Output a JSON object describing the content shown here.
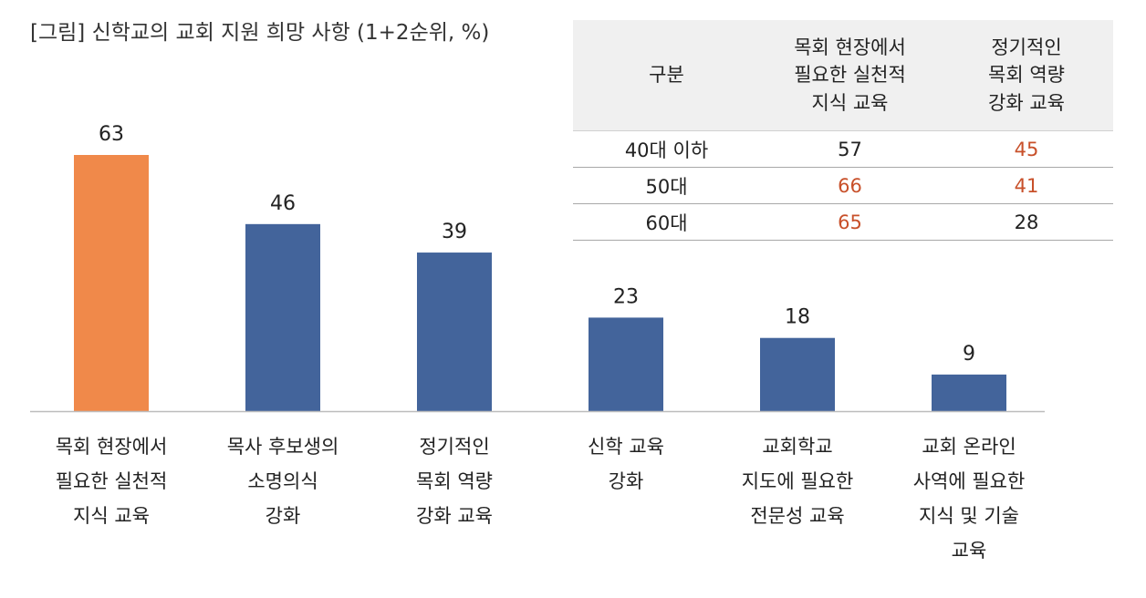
{
  "chart_data": {
    "type": "bar",
    "title": "[그림] 신학교의 교회 지원 희망 사항 (1+2순위, %)",
    "categories": [
      [
        "목회 현장에서",
        "필요한 실천적",
        "지식 교육"
      ],
      [
        "목사 후보생의",
        "소명의식",
        "강화"
      ],
      [
        "정기적인",
        "목회 역량",
        "강화 교육"
      ],
      [
        "신학 교육",
        "강화"
      ],
      [
        "교회학교",
        "지도에 필요한",
        "전문성 교육"
      ],
      [
        "교회 온라인",
        "사역에 필요한",
        "지식 및 기술",
        "교육"
      ]
    ],
    "values": [
      63,
      46,
      39,
      23,
      18,
      9
    ],
    "highlight_index": 0,
    "colors": {
      "highlight": "#f0894a",
      "bar": "#43649b",
      "axis": "#bdbdbd"
    },
    "ylim": [
      0,
      63
    ],
    "xlabel": "",
    "ylabel": "",
    "grid": false,
    "legend": "none"
  },
  "table": {
    "header": {
      "group": "구분",
      "col1": [
        "목회 현장에서",
        "필요한 실천적",
        "지식 교육"
      ],
      "col2": [
        "정기적인",
        "목회 역량",
        "강화 교육"
      ]
    },
    "rows": [
      {
        "group": "40대 이하",
        "col1": "57",
        "col2": "45",
        "col1_highlight": false,
        "col2_highlight": true
      },
      {
        "group": "50대",
        "col1": "66",
        "col2": "41",
        "col1_highlight": true,
        "col2_highlight": true
      },
      {
        "group": "60대",
        "col1": "65",
        "col2": "28",
        "col1_highlight": true,
        "col2_highlight": false
      }
    ],
    "highlight_color": "#c8502a"
  }
}
